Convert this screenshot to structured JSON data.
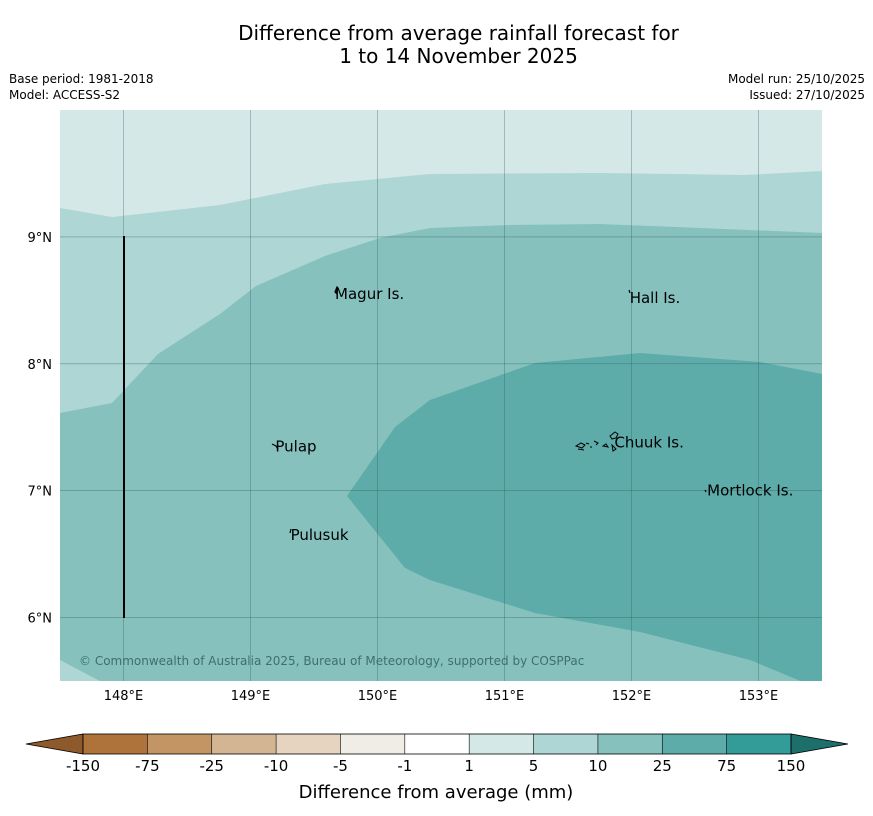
{
  "title": {
    "line1": "Difference from average rainfall forecast for",
    "line2": "1 to 14 November 2025"
  },
  "meta": {
    "base_period": "Base period: 1981-2018",
    "model": "Model: ACCESS-S2",
    "model_run": "Model run: 25/10/2025",
    "issued": "Issued: 27/10/2025"
  },
  "map": {
    "lon_range": [
      147.5,
      153.5
    ],
    "lat_range": [
      5.5,
      10.0
    ],
    "lon_ticks": [
      "148°E",
      "149°E",
      "150°E",
      "151°E",
      "152°E",
      "153°E"
    ],
    "lat_ticks": [
      "9°N",
      "8°N",
      "7°N",
      "6°N"
    ],
    "places": [
      {
        "name": "Magur Is.",
        "lon": 149.65,
        "lat": 8.55
      },
      {
        "name": "Hall Is.",
        "lon": 151.97,
        "lat": 8.52
      },
      {
        "name": "Pulap",
        "lon": 149.18,
        "lat": 7.35
      },
      {
        "name": "Chuuk Is.",
        "lon": 151.85,
        "lat": 7.38
      },
      {
        "name": "Mortlock Is.",
        "lon": 152.58,
        "lat": 7.0
      },
      {
        "name": "Pulusuk",
        "lon": 149.3,
        "lat": 6.65
      }
    ],
    "copyright": "© Commonwealth of Australia 2025, Bureau of Meteorology, supported by COSPPac",
    "colors": {
      "ocean_low": "#d4e8e7",
      "band_1_5": "#add6d4",
      "band_5_10": "#86c1be",
      "band_10_25": "#5dacaa",
      "grid": "#2f5c59"
    }
  },
  "colorbar": {
    "label": "Difference from average (mm)",
    "ticks": [
      "-150",
      "-75",
      "-25",
      "-10",
      "-5",
      "-1",
      "1",
      "5",
      "10",
      "25",
      "75",
      "150"
    ],
    "colors": [
      "#ae733b",
      "#c39565",
      "#d4b593",
      "#e6d3c0",
      "#f0ede6",
      "#ffffff",
      "#d4e8e7",
      "#add6d4",
      "#86c1be",
      "#5dacaa",
      "#339b98"
    ],
    "low_extend": "#8e5a2b",
    "high_extend": "#1d6f6b"
  }
}
